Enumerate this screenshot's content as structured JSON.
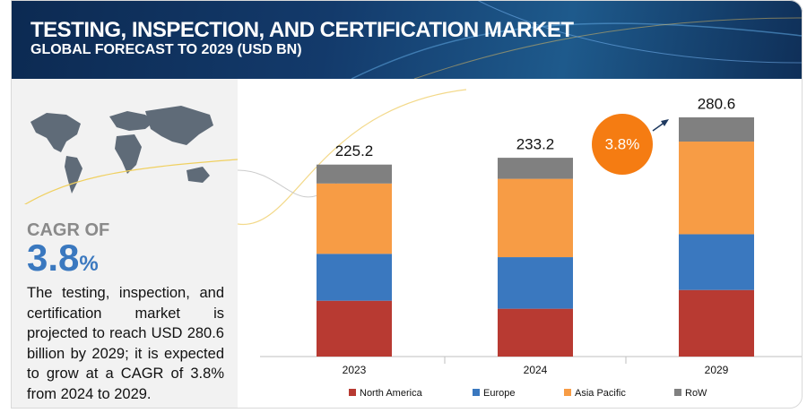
{
  "title": "TESTING, INSPECTION, AND CERTIFICATION MARKET",
  "subtitle": "GLOBAL FORECAST TO 2029 (USD BN)",
  "cagr": {
    "label": "CAGR OF",
    "value": 3.8,
    "unit": "%"
  },
  "description": "The testing, inspection, and certification market is projected to reach USD 280.6 billion by 2029; it is expected to grow at a CAGR of 3.8% from 2024 to 2029.",
  "chart_data": {
    "type": "stacked_bar",
    "categories": [
      "2023",
      "2024",
      "2029"
    ],
    "series": [
      {
        "name": "North America",
        "color": "#b83a32",
        "values": [
          65.5,
          56.1,
          78.1
        ]
      },
      {
        "name": "Europe",
        "color": "#3a78bf",
        "values": [
          55.0,
          60.5,
          65.4
        ]
      },
      {
        "name": "Asia Pacific",
        "color": "#f79c45",
        "values": [
          82.5,
          91.9,
          108.7
        ]
      },
      {
        "name": "RoW",
        "color": "#808080",
        "values": [
          22.2,
          24.7,
          28.4
        ]
      }
    ],
    "totals": [
      225.2,
      233.2,
      280.6
    ],
    "annotation": "3.8%"
  }
}
